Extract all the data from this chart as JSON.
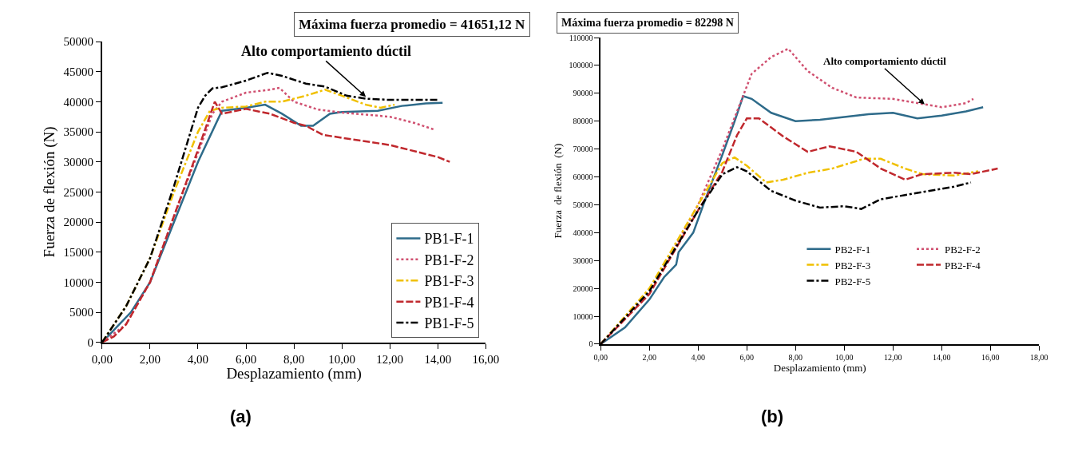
{
  "chart_data": [
    {
      "type": "line",
      "title": "Máxima fuerza promedio = 41651,12 N",
      "xlabel": "Desplazamiento (mm)",
      "ylabel": "Fuerza de flexión (N)",
      "xlim": [
        0,
        16
      ],
      "ylim": [
        0,
        50000
      ],
      "xticks": [
        {
          "value": 0,
          "label": "0,00"
        },
        {
          "value": 2,
          "label": "2,00"
        },
        {
          "value": 4,
          "label": "4,00"
        },
        {
          "value": 6,
          "label": "6,00"
        },
        {
          "value": 8,
          "label": "8,00"
        },
        {
          "value": 10,
          "label": "10,00"
        },
        {
          "value": 12,
          "label": "12,00"
        },
        {
          "value": 14,
          "label": "14,00"
        },
        {
          "value": 16,
          "label": "16,00"
        }
      ],
      "yticks": [
        0,
        5000,
        10000,
        15000,
        20000,
        25000,
        30000,
        35000,
        40000,
        45000,
        50000
      ],
      "legend": "bottom right",
      "annotations": [
        {
          "text": "Alto comportamiento dúctil",
          "x": 11,
          "y": 40800
        },
        "(a)"
      ],
      "series": [
        {
          "name": "PB1-F-1",
          "color": "#2e6b8a",
          "line_style": "solid",
          "x": [
            0,
            1.2,
            2,
            3,
            4,
            5,
            6,
            6.8,
            7.5,
            8.3,
            8.8,
            9.5,
            10,
            11.5,
            12.5,
            13.5,
            14.2
          ],
          "values": [
            0,
            5000,
            10000,
            20000,
            30000,
            38500,
            39000,
            39500,
            38000,
            36000,
            36000,
            38000,
            38300,
            38500,
            39300,
            39700,
            39800
          ]
        },
        {
          "name": "PB1-F-2",
          "color": "#d05070",
          "line_style": "dotted",
          "x": [
            0,
            1,
            2,
            3,
            4,
            4.6,
            5,
            6,
            7,
            7.4,
            8,
            9,
            10,
            12,
            13,
            13.9
          ],
          "values": [
            0,
            3000,
            10000,
            21000,
            31500,
            38000,
            40000,
            41500,
            42000,
            42300,
            40000,
            38700,
            38200,
            37500,
            36500,
            35300
          ]
        },
        {
          "name": "PB1-F-3",
          "color": "#f0c000",
          "line_style": "dashdot",
          "x": [
            0,
            1,
            2,
            3,
            4,
            4.5,
            5,
            6,
            6.8,
            7.5,
            8.5,
            9.3,
            10,
            11,
            11.6,
            12.2
          ],
          "values": [
            0,
            6000,
            14000,
            25000,
            35000,
            38500,
            39000,
            39200,
            40000,
            40000,
            41000,
            42000,
            41000,
            39500,
            39000,
            39500
          ]
        },
        {
          "name": "PB1-F-4",
          "color": "#c0282d",
          "line_style": "dashed",
          "x": [
            0,
            0.5,
            1,
            2,
            3,
            4,
            4.7,
            5,
            6,
            7,
            8,
            8.5,
            9.2,
            10,
            12,
            14,
            14.5
          ],
          "values": [
            0,
            1000,
            3000,
            10000,
            21000,
            32000,
            40000,
            38000,
            38800,
            38000,
            36500,
            36000,
            34500,
            34000,
            32800,
            30800,
            30000
          ]
        },
        {
          "name": "PB1-F-5",
          "color": "#000000",
          "line_style": "dashdot",
          "x": [
            0,
            1,
            2,
            3,
            4,
            4.3,
            4.6,
            5,
            6,
            6.9,
            7.5,
            8.5,
            9.3,
            10.2,
            11,
            12,
            14
          ],
          "values": [
            0,
            6000,
            14000,
            26000,
            39000,
            41000,
            42200,
            42400,
            43500,
            44800,
            44300,
            43000,
            42500,
            41000,
            40500,
            40300,
            40300
          ]
        }
      ]
    },
    {
      "type": "line",
      "title": "Máxima fuerza promedio = 82298 N",
      "xlabel": "Desplazamiento (mm)",
      "ylabel": "Fuerza  de flexión  (N)",
      "xlim": [
        0,
        18
      ],
      "ylim": [
        0,
        110000
      ],
      "xticks": [
        {
          "value": 0,
          "label": "0,00"
        },
        {
          "value": 2,
          "label": "2,00"
        },
        {
          "value": 4,
          "label": "4,00"
        },
        {
          "value": 6,
          "label": "6,00"
        },
        {
          "value": 8,
          "label": "8,00"
        },
        {
          "value": 10,
          "label": "10,00"
        },
        {
          "value": 12,
          "label": "12,00"
        },
        {
          "value": 14,
          "label": "14,00"
        },
        {
          "value": 16,
          "label": "16,00"
        },
        {
          "value": 18,
          "label": "18,00"
        }
      ],
      "yticks": [
        0,
        10000,
        20000,
        30000,
        40000,
        50000,
        60000,
        70000,
        80000,
        90000,
        100000,
        110000
      ],
      "legend": "bottom right",
      "annotations": [
        {
          "text": "Alto comportamiento dúctil",
          "x": 13.3,
          "y": 86000
        },
        "(b)"
      ],
      "series": [
        {
          "name": "PB2-F-1",
          "color": "#2e6b8a",
          "line_style": "solid",
          "x": [
            0,
            1,
            2,
            2.6,
            3.1,
            3.2,
            3.8,
            4.3,
            5,
            5.5,
            5.85,
            6.2,
            7,
            8,
            9,
            10,
            11,
            12,
            12.5,
            13,
            14,
            15,
            15.7
          ],
          "values": [
            0,
            6000,
            16000,
            24000,
            28500,
            33000,
            40000,
            52000,
            68000,
            80000,
            89000,
            88000,
            83000,
            80000,
            80500,
            81500,
            82500,
            83000,
            82000,
            81000,
            82000,
            83500,
            85000
          ]
        },
        {
          "name": "PB2-F-2",
          "color": "#d05070",
          "line_style": "dotted",
          "x": [
            0,
            2,
            4,
            5,
            5.8,
            6.2,
            7,
            7.7,
            8.5,
            9.5,
            10.5,
            12,
            13,
            14,
            15,
            15.3
          ],
          "values": [
            0,
            18000,
            50000,
            70000,
            88000,
            97000,
            103000,
            106000,
            98000,
            92000,
            88500,
            88000,
            86500,
            85000,
            86500,
            88000
          ]
        },
        {
          "name": "PB2-F-3",
          "color": "#f0c000",
          "line_style": "dashdot",
          "x": [
            0,
            2,
            4,
            5,
            5.5,
            6,
            6.8,
            7.5,
            8.5,
            9.5,
            10.8,
            11.5,
            12.5,
            13.2,
            14.5,
            15.5
          ],
          "values": [
            0,
            20000,
            50000,
            65000,
            67000,
            64000,
            58000,
            59000,
            61500,
            63000,
            66500,
            66500,
            63000,
            61000,
            60500,
            62000
          ]
        },
        {
          "name": "PB2-F-4",
          "color": "#c0282d",
          "line_style": "dashed",
          "x": [
            0,
            2,
            4,
            5,
            5.6,
            6,
            6.5,
            7.5,
            8.5,
            9.4,
            10.5,
            11.5,
            12.5,
            13.2,
            14.5,
            15.2,
            16.3
          ],
          "values": [
            0,
            18000,
            48000,
            62000,
            75000,
            81000,
            81000,
            74500,
            69000,
            71000,
            69000,
            63000,
            59000,
            61000,
            61500,
            61000,
            63000
          ]
        },
        {
          "name": "PB2-F-5",
          "color": "#000000",
          "line_style": "dashdot",
          "x": [
            0,
            2,
            4,
            5,
            5.6,
            6,
            7,
            8,
            9,
            10,
            10.7,
            11.5,
            12.5,
            13.5,
            14.5,
            15.2
          ],
          "values": [
            0,
            19000,
            48000,
            61000,
            63500,
            62000,
            55000,
            51500,
            49000,
            49500,
            48500,
            52000,
            53500,
            55000,
            56500,
            58000
          ]
        }
      ]
    }
  ]
}
